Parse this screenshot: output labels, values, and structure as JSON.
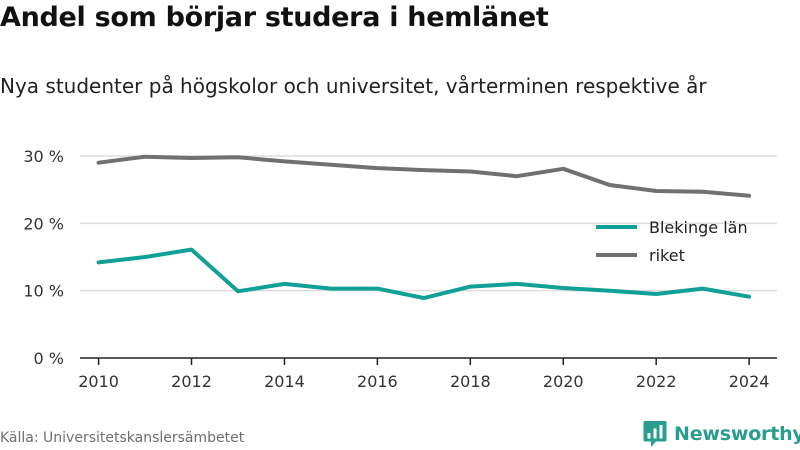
{
  "colors": {
    "blekinge": "#10a095",
    "riket": "#707070",
    "grid": "#dddddd",
    "brand": "#2a9d8f"
  },
  "source": "Källa: Universitetskanslersämbetet",
  "brand": {
    "name": "Newsworthy",
    "icon": "bar-chart-icon"
  },
  "chart_data": {
    "type": "line",
    "title": "Andel som börjar studera i hemlänet",
    "subtitle": "Nya studenter på högskolor och universitet, vårterminen respektive år",
    "xlabel": "",
    "ylabel": "",
    "x": [
      2010,
      2011,
      2012,
      2013,
      2014,
      2015,
      2016,
      2017,
      2018,
      2019,
      2020,
      2021,
      2022,
      2023,
      2024
    ],
    "xticks": [
      2010,
      2012,
      2014,
      2016,
      2018,
      2020,
      2022,
      2024
    ],
    "xlim": [
      2009.6,
      2024.6
    ],
    "ylim": [
      0,
      30
    ],
    "yticks": [
      {
        "value": 0,
        "label": "0 %"
      },
      {
        "value": 10,
        "label": "10 %"
      },
      {
        "value": 20,
        "label": "20 %"
      },
      {
        "value": 30,
        "label": "30 %"
      }
    ],
    "grid": true,
    "legend_position": "right",
    "series": [
      {
        "name": "Blekinge län",
        "color": "#10a095",
        "values": [
          14.2,
          15.0,
          16.1,
          9.9,
          11.0,
          10.3,
          10.3,
          8.9,
          10.6,
          11.0,
          10.4,
          10.0,
          9.5,
          10.3,
          9.1
        ]
      },
      {
        "name": "riket",
        "color": "#707070",
        "values": [
          29.0,
          29.9,
          29.7,
          29.8,
          29.2,
          28.7,
          28.2,
          27.9,
          27.7,
          27.0,
          28.1,
          25.7,
          24.8,
          24.7,
          24.1
        ]
      }
    ]
  }
}
